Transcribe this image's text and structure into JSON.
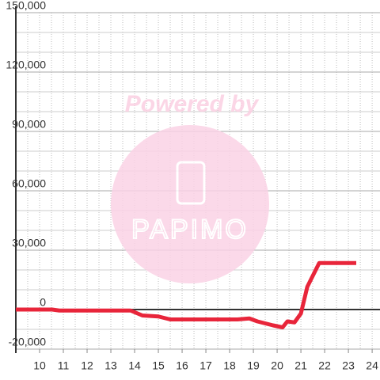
{
  "chart_data": {
    "type": "line",
    "x": [
      9,
      10.53,
      10.83,
      13.83,
      14.33,
      15,
      15.5,
      16.33,
      18.33,
      18.83,
      19.17,
      19.83,
      20.23,
      20.43,
      20.73,
      21,
      21.27,
      21.77,
      23.33
    ],
    "series": [
      {
        "color": "#e8253a",
        "values": [
          0,
          0,
          -500,
          -500,
          -3000,
          -3500,
          -5000,
          -5000,
          -5000,
          -4500,
          -6000,
          -8000,
          -9000,
          -6000,
          -6500,
          -2000,
          11500,
          23500,
          23500
        ]
      }
    ],
    "xlim": [
      9,
      24.33
    ],
    "xticks": [
      10,
      11,
      12,
      13,
      14,
      15,
      16,
      17,
      18,
      19,
      20,
      21,
      22,
      23,
      24
    ],
    "ylim": [
      -20000,
      150000
    ],
    "yticks": [
      {
        "value": 150000,
        "label": "150,000"
      },
      {
        "value": 120000,
        "label": "120,000"
      },
      {
        "value": 90000,
        "label": "90,000"
      },
      {
        "value": 60000,
        "label": "60,000"
      },
      {
        "value": 30000,
        "label": "30,000"
      },
      0,
      {
        "value": -20000,
        "label": "-20,000"
      }
    ],
    "grid": true,
    "grid_step": {
      "x": 0.5,
      "y": 10000
    }
  },
  "watermark": {
    "title": "Powered by",
    "brand": "PAPIMO"
  }
}
